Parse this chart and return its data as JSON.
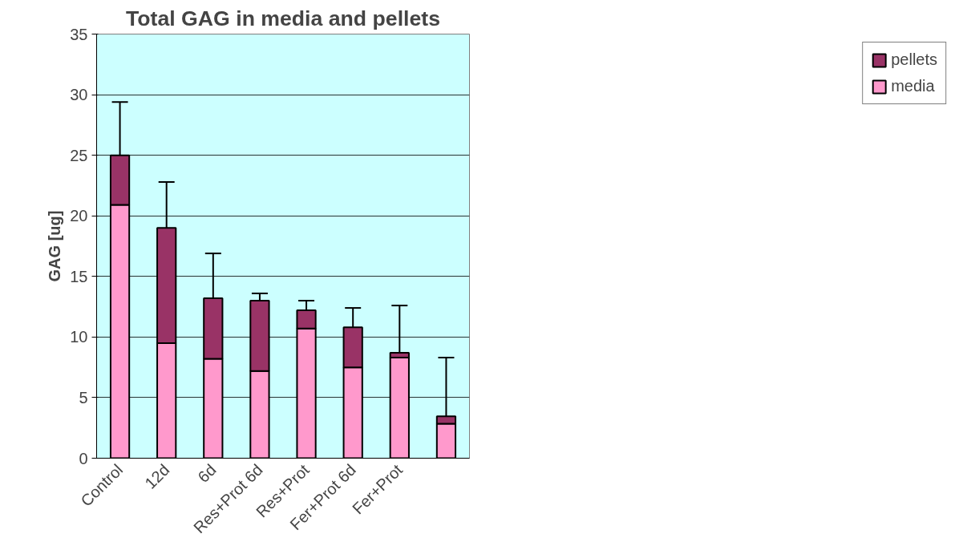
{
  "chart_data": {
    "type": "bar",
    "stacked": true,
    "title": "Total GAG in media and pellets",
    "ylabel": "GAG [ug]",
    "categories": [
      "Control",
      "12d",
      "6d",
      "Res+Prot 6d",
      "Res+Prot",
      "Fer+Prot 6d",
      "Fer+Prot",
      null
    ],
    "series": [
      {
        "name": "media",
        "color": "#ff99cc",
        "values": [
          20.9,
          9.5,
          8.2,
          7.2,
          10.7,
          7.5,
          8.3,
          2.85
        ]
      },
      {
        "name": "pellets",
        "color": "#993366",
        "values": [
          4.1,
          9.5,
          5.0,
          5.8,
          1.5,
          3.3,
          0.4,
          0.6
        ],
        "errors": [
          [
            25.0,
            29.4
          ],
          [
            19.0,
            22.8
          ],
          [
            13.2,
            16.9
          ],
          [
            13.0,
            13.6
          ],
          [
            12.2,
            13.0
          ],
          [
            10.8,
            12.4
          ],
          [
            8.7,
            12.6
          ],
          [
            3.45,
            8.3
          ]
        ]
      }
    ],
    "ylim": [
      0,
      35
    ],
    "yticks": [
      0,
      5,
      10,
      15,
      20,
      25,
      30,
      35
    ],
    "grid": "y",
    "legend": "right"
  }
}
